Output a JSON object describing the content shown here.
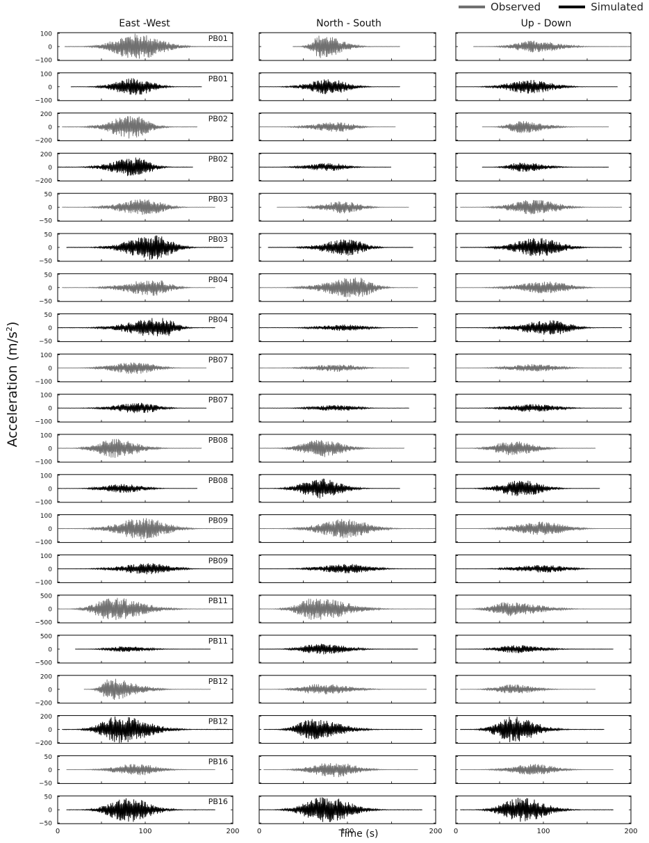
{
  "chart_data": {
    "type": "line",
    "ylabel": "Acceleration (m/s",
    "ylabel_sup": "2",
    "xlabel": "Time (s)",
    "xlim": [
      0,
      200
    ],
    "x_ticks": [
      0,
      100,
      200
    ],
    "columns": [
      "East -West",
      "North - South",
      "Up - Down"
    ],
    "legend": {
      "position": "top-right",
      "entries": [
        {
          "label": "Observed",
          "color": "#707070"
        },
        {
          "label": "Simulated",
          "color": "#000000"
        }
      ]
    },
    "colors": {
      "observed": "#707070",
      "simulated": "#000000"
    },
    "rows": [
      {
        "station": "PB01",
        "type": "observed",
        "ylim": [
          -100,
          100
        ],
        "ticks": [
          "100",
          "0",
          "−100"
        ],
        "cols": [
          {
            "start": 8,
            "end": 200,
            "peak": 90,
            "amp": 95
          },
          {
            "start": 38,
            "end": 160,
            "peak": 70,
            "amp": 85
          },
          {
            "start": 20,
            "end": 200,
            "peak": 90,
            "amp": 45
          }
        ]
      },
      {
        "station": "PB01",
        "type": "simulated",
        "ylim": [
          -100,
          100
        ],
        "ticks": [
          "100",
          "0",
          "−100"
        ],
        "cols": [
          {
            "start": 15,
            "end": 165,
            "peak": 88,
            "amp": 65
          },
          {
            "start": 0,
            "end": 160,
            "peak": 80,
            "amp": 55
          },
          {
            "start": 0,
            "end": 185,
            "peak": 85,
            "amp": 50
          }
        ]
      },
      {
        "station": "PB02",
        "type": "observed",
        "ylim": [
          -200,
          200
        ],
        "ticks": [
          "200",
          "0",
          "−200"
        ],
        "cols": [
          {
            "start": 5,
            "end": 160,
            "peak": 85,
            "amp": 170
          },
          {
            "start": 0,
            "end": 155,
            "peak": 90,
            "amp": 75
          },
          {
            "start": 30,
            "end": 175,
            "peak": 75,
            "amp": 90
          }
        ]
      },
      {
        "station": "PB02",
        "type": "simulated",
        "ylim": [
          -200,
          200
        ],
        "ticks": [
          "200",
          "0",
          "−200"
        ],
        "cols": [
          {
            "start": 0,
            "end": 155,
            "peak": 90,
            "amp": 140
          },
          {
            "start": 0,
            "end": 150,
            "peak": 80,
            "amp": 60
          },
          {
            "start": 30,
            "end": 175,
            "peak": 75,
            "amp": 70
          }
        ]
      },
      {
        "station": "PB03",
        "type": "observed",
        "ylim": [
          -50,
          50
        ],
        "ticks": [
          "50",
          "0",
          "−50"
        ],
        "cols": [
          {
            "start": 5,
            "end": 180,
            "peak": 100,
            "amp": 30
          },
          {
            "start": 20,
            "end": 170,
            "peak": 95,
            "amp": 22
          },
          {
            "start": 5,
            "end": 190,
            "peak": 90,
            "amp": 28
          }
        ]
      },
      {
        "station": "PB03",
        "type": "simulated",
        "ylim": [
          -50,
          50
        ],
        "ticks": [
          "50",
          "0",
          "−50"
        ],
        "cols": [
          {
            "start": 10,
            "end": 190,
            "peak": 110,
            "amp": 45
          },
          {
            "start": 10,
            "end": 175,
            "peak": 100,
            "amp": 30
          },
          {
            "start": 5,
            "end": 190,
            "peak": 95,
            "amp": 35
          }
        ]
      },
      {
        "station": "PB04",
        "type": "observed",
        "ylim": [
          -50,
          50
        ],
        "ticks": [
          "50",
          "0",
          "−50"
        ],
        "cols": [
          {
            "start": 5,
            "end": 180,
            "peak": 110,
            "amp": 30
          },
          {
            "start": 0,
            "end": 180,
            "peak": 110,
            "amp": 38
          },
          {
            "start": 0,
            "end": 200,
            "peak": 105,
            "amp": 22
          }
        ]
      },
      {
        "station": "PB04",
        "type": "simulated",
        "ylim": [
          -50,
          50
        ],
        "ticks": [
          "50",
          "0",
          "−50"
        ],
        "cols": [
          {
            "start": 0,
            "end": 180,
            "peak": 118,
            "amp": 38
          },
          {
            "start": 0,
            "end": 180,
            "peak": 100,
            "amp": 12
          },
          {
            "start": 0,
            "end": 190,
            "peak": 110,
            "amp": 28
          }
        ]
      },
      {
        "station": "PB07",
        "type": "observed",
        "ylim": [
          -100,
          100
        ],
        "ticks": [
          "100",
          "0",
          "−100"
        ],
        "cols": [
          {
            "start": 0,
            "end": 170,
            "peak": 90,
            "amp": 45
          },
          {
            "start": 0,
            "end": 170,
            "peak": 90,
            "amp": 28
          },
          {
            "start": 0,
            "end": 190,
            "peak": 90,
            "amp": 28
          }
        ]
      },
      {
        "station": "PB07",
        "type": "simulated",
        "ylim": [
          -100,
          100
        ],
        "ticks": [
          "100",
          "0",
          "−100"
        ],
        "cols": [
          {
            "start": 0,
            "end": 170,
            "peak": 95,
            "amp": 40
          },
          {
            "start": 0,
            "end": 170,
            "peak": 90,
            "amp": 22
          },
          {
            "start": 0,
            "end": 190,
            "peak": 90,
            "amp": 30
          }
        ]
      },
      {
        "station": "PB08",
        "type": "observed",
        "ylim": [
          -100,
          100
        ],
        "ticks": [
          "100",
          "0",
          "−100"
        ],
        "cols": [
          {
            "start": 0,
            "end": 165,
            "peak": 65,
            "amp": 70
          },
          {
            "start": 0,
            "end": 165,
            "peak": 70,
            "amp": 65
          },
          {
            "start": 0,
            "end": 160,
            "peak": 65,
            "amp": 55
          }
        ]
      },
      {
        "station": "PB08",
        "type": "simulated",
        "ylim": [
          -100,
          100
        ],
        "ticks": [
          "100",
          "0",
          "−100"
        ],
        "cols": [
          {
            "start": 0,
            "end": 160,
            "peak": 75,
            "amp": 32
          },
          {
            "start": 0,
            "end": 160,
            "peak": 70,
            "amp": 75
          },
          {
            "start": 0,
            "end": 165,
            "peak": 75,
            "amp": 60
          }
        ]
      },
      {
        "station": "PB09",
        "type": "observed",
        "ylim": [
          -100,
          100
        ],
        "ticks": [
          "100",
          "0",
          "−100"
        ],
        "cols": [
          {
            "start": 0,
            "end": 200,
            "peak": 98,
            "amp": 80
          },
          {
            "start": 0,
            "end": 200,
            "peak": 98,
            "amp": 70
          },
          {
            "start": 0,
            "end": 200,
            "peak": 98,
            "amp": 50
          }
        ]
      },
      {
        "station": "PB09",
        "type": "simulated",
        "ylim": [
          -100,
          100
        ],
        "ticks": [
          "100",
          "0",
          "−100"
        ],
        "cols": [
          {
            "start": 0,
            "end": 200,
            "peak": 105,
            "amp": 40
          },
          {
            "start": 0,
            "end": 200,
            "peak": 100,
            "amp": 35
          },
          {
            "start": 0,
            "end": 200,
            "peak": 100,
            "amp": 28
          }
        ]
      },
      {
        "station": "PB11",
        "type": "observed",
        "ylim": [
          -500,
          500
        ],
        "ticks": [
          "500",
          "0",
          "−500"
        ],
        "cols": [
          {
            "start": 0,
            "end": 200,
            "peak": 62,
            "amp": 420
          },
          {
            "start": 0,
            "end": 200,
            "peak": 65,
            "amp": 420
          },
          {
            "start": 0,
            "end": 200,
            "peak": 60,
            "amp": 260
          }
        ]
      },
      {
        "station": "PB11",
        "type": "simulated",
        "ylim": [
          -500,
          500
        ],
        "ticks": [
          "500",
          "0",
          "−500"
        ],
        "cols": [
          {
            "start": 20,
            "end": 175,
            "peak": 75,
            "amp": 110
          },
          {
            "start": 0,
            "end": 180,
            "peak": 70,
            "amp": 200
          },
          {
            "start": 0,
            "end": 180,
            "peak": 70,
            "amp": 150
          }
        ]
      },
      {
        "station": "PB12",
        "type": "observed",
        "ylim": [
          -200,
          200
        ],
        "ticks": [
          "200",
          "0",
          "−200"
        ],
        "cols": [
          {
            "start": 30,
            "end": 175,
            "peak": 60,
            "amp": 160
          },
          {
            "start": 0,
            "end": 190,
            "peak": 70,
            "amp": 80
          },
          {
            "start": 5,
            "end": 160,
            "peak": 65,
            "amp": 70
          }
        ]
      },
      {
        "station": "PB12",
        "type": "simulated",
        "ylim": [
          -200,
          200
        ],
        "ticks": [
          "200",
          "0",
          "−200"
        ],
        "cols": [
          {
            "start": 5,
            "end": 200,
            "peak": 70,
            "amp": 200
          },
          {
            "start": 5,
            "end": 185,
            "peak": 60,
            "amp": 150
          },
          {
            "start": 5,
            "end": 170,
            "peak": 65,
            "amp": 190
          }
        ]
      },
      {
        "station": "PB16",
        "type": "observed",
        "ylim": [
          -50,
          50
        ],
        "ticks": [
          "50",
          "0",
          "−50"
        ],
        "cols": [
          {
            "start": 10,
            "end": 180,
            "peak": 90,
            "amp": 22
          },
          {
            "start": 5,
            "end": 180,
            "peak": 85,
            "amp": 28
          },
          {
            "start": 5,
            "end": 180,
            "peak": 90,
            "amp": 20
          }
        ]
      },
      {
        "station": "PB16",
        "type": "simulated",
        "ylim": [
          -50,
          50
        ],
        "ticks": [
          "50",
          "0",
          "−50"
        ],
        "cols": [
          {
            "start": 10,
            "end": 180,
            "peak": 80,
            "amp": 45
          },
          {
            "start": 0,
            "end": 185,
            "peak": 75,
            "amp": 48
          },
          {
            "start": 5,
            "end": 180,
            "peak": 75,
            "amp": 45
          }
        ]
      }
    ]
  }
}
